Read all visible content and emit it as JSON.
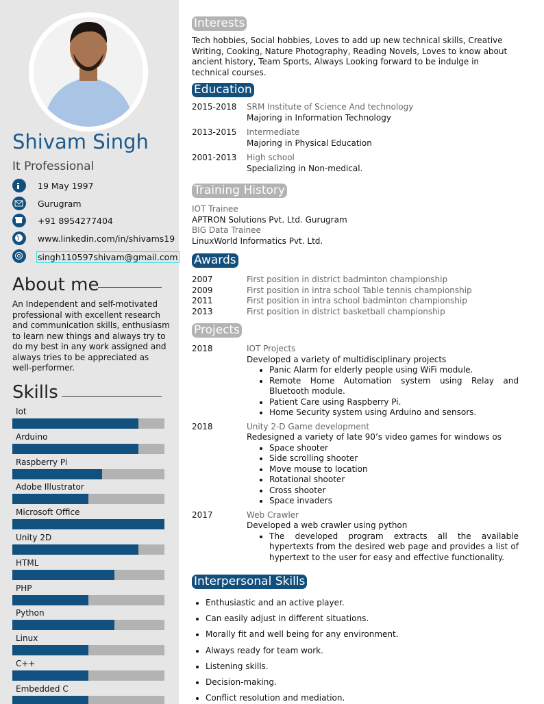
{
  "sidebar": {
    "name": "Shivam Singh",
    "title": "It Professional",
    "contacts": [
      "19 May 1997",
      "Gurugram",
      "+91 8954277404",
      "www.linkedin.com/in/shivams19",
      "singh110597shivam@gmail.com"
    ],
    "about": {
      "heading": "About me",
      "text": "An Independent and self-motivated professional with excellent research and communication skills, enthusiasm to learn new things and always try to do my best in any work assigned and always tries to be appreciated as well-performer."
    },
    "skills": {
      "heading": "Skills",
      "items": [
        {
          "name": "Iot",
          "level": 83
        },
        {
          "name": "Arduino",
          "level": 83
        },
        {
          "name": "Raspberry Pi",
          "level": 59
        },
        {
          "name": "Adobe Illustrator",
          "level": 50
        },
        {
          "name": "Microsoft Office",
          "level": 100
        },
        {
          "name": "Unity 2D",
          "level": 83
        },
        {
          "name": "HTML",
          "level": 67
        },
        {
          "name": "PHP",
          "level": 50
        },
        {
          "name": "Python",
          "level": 67
        },
        {
          "name": "Linux",
          "level": 50
        },
        {
          "name": "C++",
          "level": 50
        },
        {
          "name": "Embedded C",
          "level": 50
        }
      ]
    }
  },
  "interests": {
    "heading": "Interests",
    "text": "Tech hobbies, Social hobbies, Loves to add up new technical skills, Creative Writing, Cooking, Nature Photography, Reading Novels, Loves to know about ancient history, Team Sports, Always Looking forward to be indulge in technical courses."
  },
  "education": {
    "heading": "Education",
    "entries": [
      {
        "years": "2015-2018",
        "school": "SRM Institute of Science And technology",
        "detail": "Majoring in Information Technology"
      },
      {
        "years": "2013-2015",
        "school": "Intermediate",
        "detail": "Majoring in Physical Education"
      },
      {
        "years": "2001-2013",
        "school": "High school",
        "detail": "Specializing in Non-medical."
      }
    ]
  },
  "training": {
    "heading": "Training History",
    "lines": [
      "IOT Trainee",
      "APTRON Solutions Pvt. Ltd. Gurugram",
      "BIG Data Trainee",
      "LinuxWorld Informatics Pvt. Ltd."
    ]
  },
  "awards": {
    "heading": "Awards",
    "entries": [
      {
        "year": "2007",
        "text": "First position in district badminton championship"
      },
      {
        "year": "2009",
        "text": "First position in intra school Table tennis championship"
      },
      {
        "year": "2011",
        "text": "First position in intra school badminton championship"
      },
      {
        "year": "2013",
        "text": "First position in district basketball championship"
      }
    ]
  },
  "projects": {
    "heading": "Projects",
    "entries": [
      {
        "year": "2018",
        "name": "IOT Projects",
        "summary": "Developed a variety of multidisciplinary projects",
        "bullets": [
          "Panic Alarm for elderly people using WiFi module.",
          "Remote Home Automation system using Relay and Bluetooth module.",
          "Patient Care using Raspberry Pi.",
          "Home Security system using Arduino and sensors."
        ]
      },
      {
        "year": "2018",
        "name": "Unity 2-D Game development",
        "summary": "Redesigned a variety of late 90’s video games for windows os",
        "bullets": [
          "Space shooter",
          "Side scrolling shooter",
          "Move mouse to location",
          "Rotational shooter",
          "Cross shooter",
          "Space invaders"
        ]
      },
      {
        "year": "2017",
        "name": "Web Crawler",
        "summary": "Developed a web crawler using python",
        "bullets": [
          "The developed program extracts all the available hypertexts from the desired web page and provides a list of hypertext to the user for easy and effective functionality."
        ]
      }
    ]
  },
  "interpersonal": {
    "heading": "Interpersonal Skills",
    "items": [
      "Enthusiastic and an active player.",
      "Can easily adjust in different situations.",
      "Morally fit and well being for any environment.",
      "Always ready for team work.",
      "Listening skills.",
      "Decision-making.",
      "Conflict resolution and mediation."
    ]
  }
}
